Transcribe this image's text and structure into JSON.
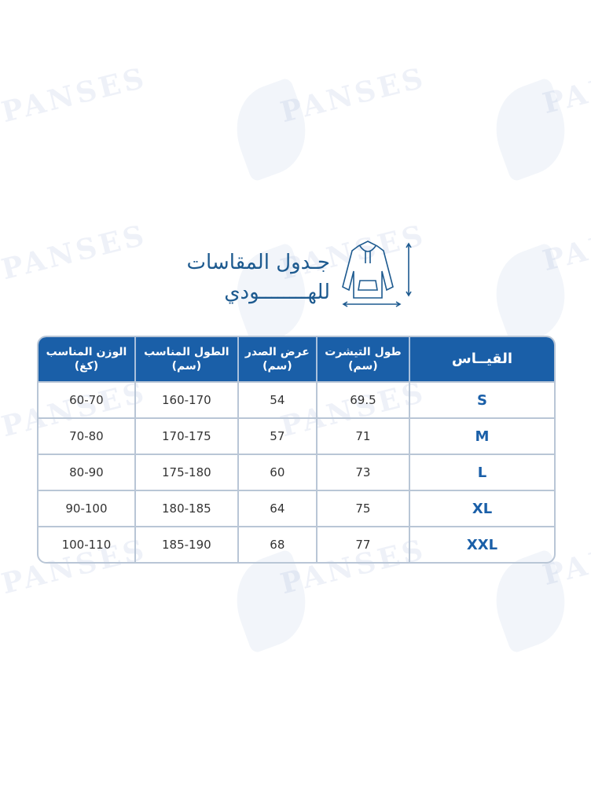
{
  "watermark": "PANSES",
  "title": {
    "line1": "جـدول المقاسات",
    "line2": "للهــــــــودي"
  },
  "table": {
    "headers": [
      {
        "line1": "القيــاس",
        "line2": ""
      },
      {
        "line1": "طول التيشرت",
        "line2": "(سم)"
      },
      {
        "line1": "عرض الصدر",
        "line2": "(سم)"
      },
      {
        "line1": "الطول المناسب",
        "line2": "(سم)"
      },
      {
        "line1": "الوزن المناسب",
        "line2": "(كغ)"
      }
    ],
    "rows": [
      [
        "S",
        "69.5",
        "54",
        "160-170",
        "60-70"
      ],
      [
        "M",
        "71",
        "57",
        "170-175",
        "70-80"
      ],
      [
        "L",
        "73",
        "60",
        "175-180",
        "80-90"
      ],
      [
        "XL",
        "75",
        "64",
        "180-185",
        "90-100"
      ],
      [
        "XXL",
        "77",
        "68",
        "185-190",
        "100-110"
      ]
    ]
  },
  "colors": {
    "header": "#1a5fa8",
    "title": "#1d5a8f",
    "border": "#b9c6d6"
  },
  "icon": "hoodie-measure-icon"
}
